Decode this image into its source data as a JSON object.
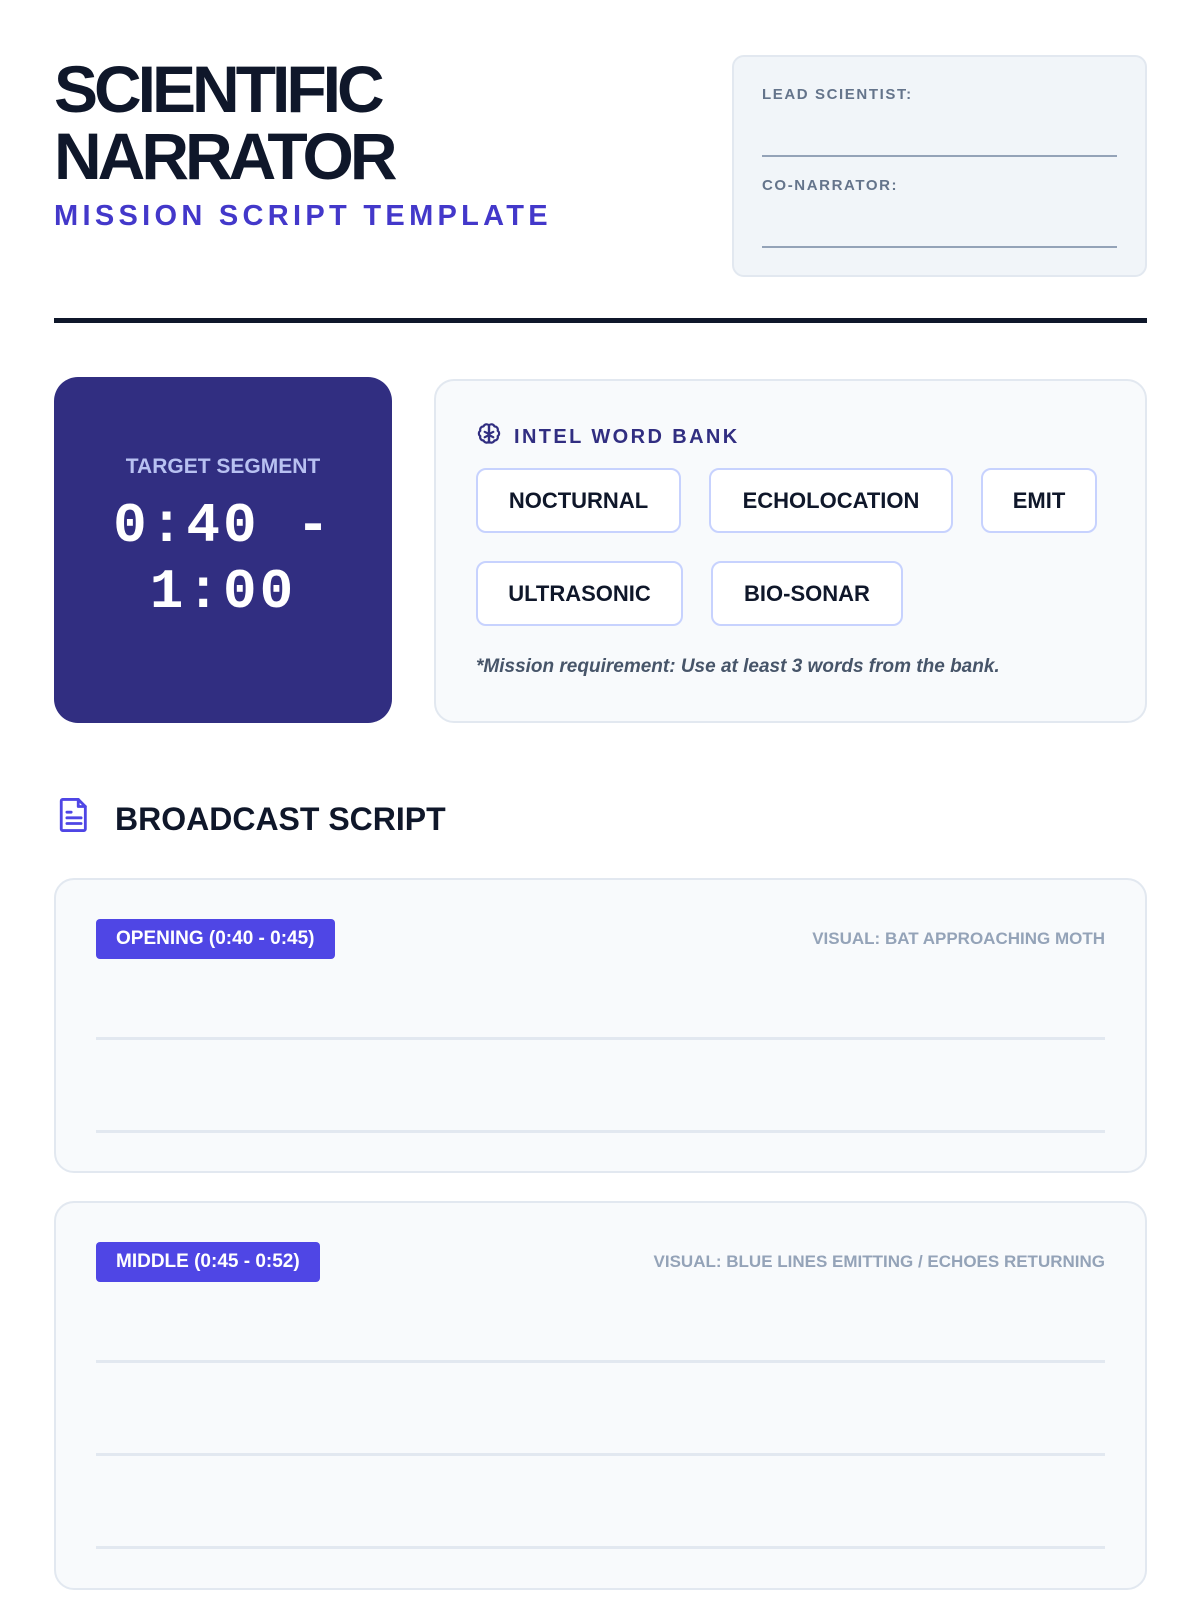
{
  "header": {
    "title_line1": "SCIENTIFIC",
    "title_line2": "NARRATOR",
    "subtitle": "MISSION SCRIPT TEMPLATE"
  },
  "info": {
    "lead_label": "LEAD SCIENTIST:",
    "lead_value": "",
    "co_label": "CO-NARRATOR:",
    "co_value": ""
  },
  "timer": {
    "label": "TARGET SEGMENT",
    "line1": "0:40 -",
    "line2": "1:00"
  },
  "word_bank": {
    "title": "INTEL WORD BANK",
    "icon": "brain-icon",
    "words": [
      "NOCTURNAL",
      "ECHOLOCATION",
      "EMIT",
      "ULTRASONIC",
      "BIO-SONAR"
    ],
    "note": "*Mission requirement: Use at least 3 words from the bank."
  },
  "script": {
    "title": "BROADCAST SCRIPT",
    "icon": "document-icon",
    "sections": [
      {
        "badge": "OPENING (0:40 - 0:45)",
        "visual": "VISUAL: BAT APPROACHING MOTH"
      },
      {
        "badge": "MIDDLE (0:45 - 0:52)",
        "visual": "VISUAL: BLUE LINES EMITTING / ECHOES RETURNING"
      }
    ]
  },
  "colors": {
    "accent": "#4f46e5",
    "navy": "#312e81",
    "ink": "#0f172a"
  }
}
